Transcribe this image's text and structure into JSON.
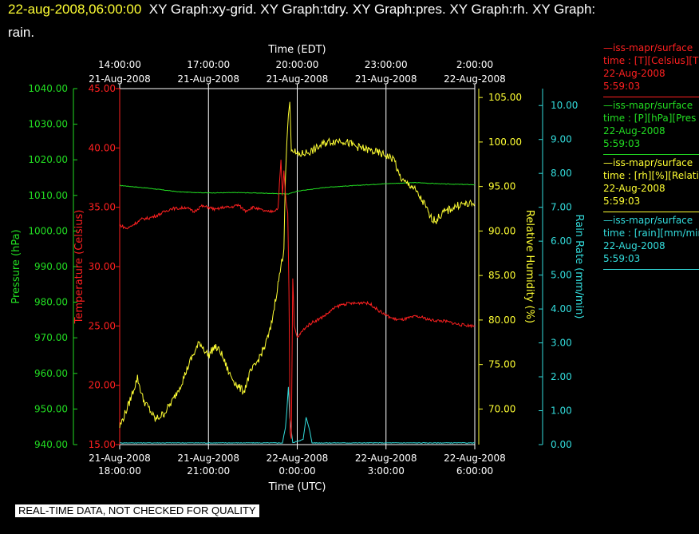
{
  "header": {
    "timestamp": "22-aug-2008,06:00:00",
    "graphs_line1": "XY Graph:xy-grid.  XY Graph:tdry.  XY Graph:pres.  XY Graph:rh.  XY Graph:",
    "graphs_line2": "rain."
  },
  "banner": "REAL-TIME DATA, NOT CHECKED FOR QUALITY",
  "legend": [
    {
      "name": "iss-mapr/surface",
      "line2": "time : [T][Celsius][T",
      "date": "22-Aug-2008",
      "time": "5:59:03",
      "color": "#ff2020"
    },
    {
      "name": "iss-mapr/surface",
      "line2": "time : [P][hPa][Pres",
      "date": "22-Aug-2008",
      "time": "5:59:03",
      "color": "#22dd22"
    },
    {
      "name": "iss-mapr/surface",
      "line2": "time : [rh][%][Relati",
      "date": "22-Aug-2008",
      "time": "5:59:03",
      "color": "#ffff33"
    },
    {
      "name": "iss-mapr/surface",
      "line2": "time : [rain][mm/min",
      "date": "22-Aug-2008",
      "time": "5:59:03",
      "color": "#33dddd"
    }
  ],
  "colors": {
    "temperature": "#ff2020",
    "pressure": "#22dd22",
    "humidity": "#ffff33",
    "rain": "#33dddd",
    "grid": "#ffffff",
    "frame": "#ffffff"
  },
  "chart_data": {
    "type": "line",
    "top_axis": {
      "title": "Time (EDT)",
      "ticks": [
        [
          "14:00:00",
          "21-Aug-2008"
        ],
        [
          "17:00:00",
          "21-Aug-2008"
        ],
        [
          "20:00:00",
          "21-Aug-2008"
        ],
        [
          "23:00:00",
          "21-Aug-2008"
        ],
        [
          "2:00:00",
          "22-Aug-2008"
        ]
      ]
    },
    "bottom_axis": {
      "title": "Time (UTC)",
      "ticks": [
        [
          "21-Aug-2008",
          "18:00:00"
        ],
        [
          "21-Aug-2008",
          "21:00:00"
        ],
        [
          "22-Aug-2008",
          "0:00:00"
        ],
        [
          "22-Aug-2008",
          "3:00:00"
        ],
        [
          "22-Aug-2008",
          "6:00:00"
        ]
      ]
    },
    "x_range_hours_utc": [
      18,
      30
    ],
    "grid": true,
    "axes": {
      "pressure": {
        "label": "Pressure (hPa)",
        "ylim": [
          940,
          1040
        ],
        "ticks": [
          "940.00",
          "950.00",
          "960.00",
          "970.00",
          "980.00",
          "990.00",
          "1000.00",
          "1010.00",
          "1020.00",
          "1030.00",
          "1040.00"
        ]
      },
      "temperature": {
        "label": "Temperature (Celsius)",
        "ylim": [
          15,
          45
        ],
        "ticks": [
          "15.00",
          "20.00",
          "25.00",
          "30.00",
          "35.00",
          "40.00",
          "45.00"
        ]
      },
      "humidity": {
        "label": "Relative Humidity (%)",
        "ylim": [
          66,
          106
        ],
        "ticks": [
          "70.00",
          "75.00",
          "80.00",
          "85.00",
          "90.00",
          "95.00",
          "100.00",
          "105.00"
        ]
      },
      "rain": {
        "label": "Rain Rate (mm/min)",
        "ylim": [
          0,
          10.5
        ],
        "ticks": [
          "0.00",
          "1.00",
          "2.00",
          "3.00",
          "4.00",
          "5.00",
          "6.00",
          "7.00",
          "8.00",
          "9.00",
          "10.00"
        ]
      }
    },
    "series": [
      {
        "key": "temperature",
        "points": [
          [
            18,
            33.5
          ],
          [
            18.25,
            33.2
          ],
          [
            18.5,
            33.6
          ],
          [
            18.75,
            34.0
          ],
          [
            19,
            34.1
          ],
          [
            19.25,
            34.3
          ],
          [
            19.5,
            34.6
          ],
          [
            19.75,
            34.9
          ],
          [
            20,
            34.9
          ],
          [
            20.25,
            35.0
          ],
          [
            20.5,
            34.6
          ],
          [
            20.75,
            35.1
          ],
          [
            21,
            35.0
          ],
          [
            21.25,
            34.8
          ],
          [
            21.5,
            35.0
          ],
          [
            21.75,
            35.0
          ],
          [
            22,
            35.2
          ],
          [
            22.25,
            34.7
          ],
          [
            22.5,
            35.0
          ],
          [
            22.75,
            34.8
          ],
          [
            23,
            34.6
          ],
          [
            23.2,
            34.7
          ],
          [
            23.35,
            34.9
          ],
          [
            23.45,
            39.0
          ],
          [
            23.5,
            36.0
          ],
          [
            23.55,
            38.0
          ],
          [
            23.62,
            35.5
          ],
          [
            23.68,
            34.5
          ],
          [
            23.72,
            28.0
          ],
          [
            23.76,
            16.0
          ],
          [
            23.8,
            15.5
          ],
          [
            23.85,
            29.0
          ],
          [
            23.9,
            25.0
          ],
          [
            23.95,
            24.5
          ],
          [
            24.0,
            24.0
          ],
          [
            24.25,
            24.8
          ],
          [
            24.5,
            25.3
          ],
          [
            24.75,
            25.6
          ],
          [
            25,
            26.0
          ],
          [
            25.25,
            26.5
          ],
          [
            25.5,
            26.8
          ],
          [
            25.75,
            26.9
          ],
          [
            26,
            26.9
          ],
          [
            26.25,
            27.0
          ],
          [
            26.5,
            26.8
          ],
          [
            26.75,
            26.3
          ],
          [
            27,
            25.9
          ],
          [
            27.25,
            25.6
          ],
          [
            27.5,
            25.5
          ],
          [
            28,
            25.8
          ],
          [
            28.25,
            25.7
          ],
          [
            28.5,
            25.5
          ],
          [
            29,
            25.4
          ],
          [
            29.5,
            25.1
          ],
          [
            30,
            25.0
          ]
        ]
      },
      {
        "key": "pressure",
        "points": [
          [
            18,
            1012.8
          ],
          [
            19,
            1012.0
          ],
          [
            20,
            1011.0
          ],
          [
            21,
            1010.7
          ],
          [
            22,
            1010.8
          ],
          [
            23,
            1010.6
          ],
          [
            23.7,
            1010.4
          ],
          [
            24,
            1011.2
          ],
          [
            25,
            1012.3
          ],
          [
            26,
            1012.8
          ],
          [
            27,
            1013.3
          ],
          [
            28,
            1013.6
          ],
          [
            29,
            1013.2
          ],
          [
            30,
            1013.0
          ]
        ]
      },
      {
        "key": "humidity",
        "points": [
          [
            18,
            68.0
          ],
          [
            18.3,
            70.5
          ],
          [
            18.6,
            73.5
          ],
          [
            18.8,
            71.0
          ],
          [
            19.0,
            70.0
          ],
          [
            19.2,
            68.8
          ],
          [
            19.5,
            69.5
          ],
          [
            19.8,
            71.0
          ],
          [
            20.1,
            73.0
          ],
          [
            20.4,
            75.5
          ],
          [
            20.7,
            77.5
          ],
          [
            21.0,
            76.0
          ],
          [
            21.2,
            77.0
          ],
          [
            21.4,
            76.5
          ],
          [
            21.7,
            74.0
          ],
          [
            22.0,
            72.5
          ],
          [
            22.2,
            72.0
          ],
          [
            22.4,
            74.0
          ],
          [
            22.6,
            75.0
          ],
          [
            22.9,
            77.0
          ],
          [
            23.1,
            79.0
          ],
          [
            23.3,
            83.0
          ],
          [
            23.45,
            86.0
          ],
          [
            23.55,
            88.0
          ],
          [
            23.6,
            96.0
          ],
          [
            23.65,
            100.0
          ],
          [
            23.7,
            103.0
          ],
          [
            23.75,
            104.5
          ],
          [
            23.8,
            99.0
          ],
          [
            23.85,
            99.2
          ],
          [
            24.0,
            98.5
          ],
          [
            24.5,
            99.0
          ],
          [
            25.0,
            100.0
          ],
          [
            25.5,
            100.2
          ],
          [
            26.0,
            99.5
          ],
          [
            26.5,
            99.0
          ],
          [
            27.0,
            98.5
          ],
          [
            27.3,
            98.0
          ],
          [
            27.4,
            96.5
          ],
          [
            27.6,
            95.5
          ],
          [
            27.9,
            95.0
          ],
          [
            28.1,
            94.0
          ],
          [
            28.3,
            93.0
          ],
          [
            28.5,
            91.5
          ],
          [
            28.7,
            91.2
          ],
          [
            28.9,
            92.0
          ],
          [
            29.2,
            92.5
          ],
          [
            29.5,
            93.0
          ],
          [
            30,
            93.0
          ]
        ]
      },
      {
        "key": "rain",
        "points": [
          [
            18,
            0.05
          ],
          [
            23.5,
            0.05
          ],
          [
            23.6,
            0.5
          ],
          [
            23.65,
            1.0
          ],
          [
            23.7,
            1.7
          ],
          [
            23.75,
            0.8
          ],
          [
            23.8,
            0.4
          ],
          [
            23.85,
            0.05
          ],
          [
            24.0,
            0.1
          ],
          [
            24.2,
            0.15
          ],
          [
            24.3,
            0.8
          ],
          [
            24.4,
            0.5
          ],
          [
            24.5,
            0.05
          ],
          [
            30,
            0.05
          ]
        ]
      }
    ]
  }
}
